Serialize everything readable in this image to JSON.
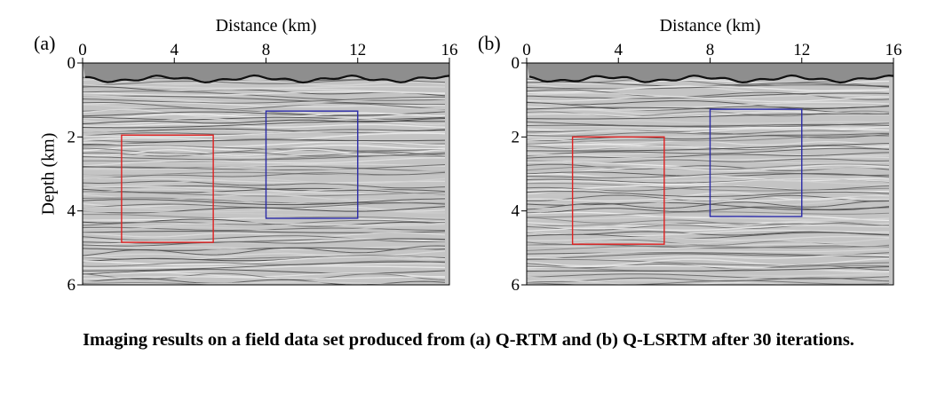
{
  "figure": {
    "panels": [
      {
        "id": "a",
        "letter": "(a)",
        "x_axis_label": "Distance (km)",
        "y_axis_label": "Depth (km)",
        "x_ticks": [
          0,
          4,
          8,
          12,
          16
        ],
        "y_ticks": [
          0,
          2,
          4,
          6
        ],
        "x_range": [
          0,
          16
        ],
        "y_range": [
          0,
          6
        ],
        "boxes": [
          {
            "color": "#e02020",
            "x": [
              1.7,
              5.7
            ],
            "y": [
              1.95,
              4.85
            ]
          },
          {
            "color": "#2a2aa8",
            "x": [
              8.0,
              12.0
            ],
            "y": [
              1.3,
              4.2
            ]
          }
        ]
      },
      {
        "id": "b",
        "letter": "(b)",
        "x_axis_label": "Distance (km)",
        "y_axis_label": "",
        "x_ticks": [
          0,
          4,
          8,
          12,
          16
        ],
        "y_ticks": [
          0,
          2,
          4,
          6
        ],
        "x_range": [
          0,
          16
        ],
        "y_range": [
          0,
          6
        ],
        "boxes": [
          {
            "color": "#e02020",
            "x": [
              2.0,
              6.0
            ],
            "y": [
              2.0,
              4.9
            ]
          },
          {
            "color": "#2a2aa8",
            "x": [
              8.0,
              12.0
            ],
            "y": [
              1.25,
              4.15
            ]
          }
        ]
      }
    ]
  },
  "caption": "Imaging results on a field data set produced from (a) Q-RTM and (b) Q-LSRTM after 30 iterations."
}
